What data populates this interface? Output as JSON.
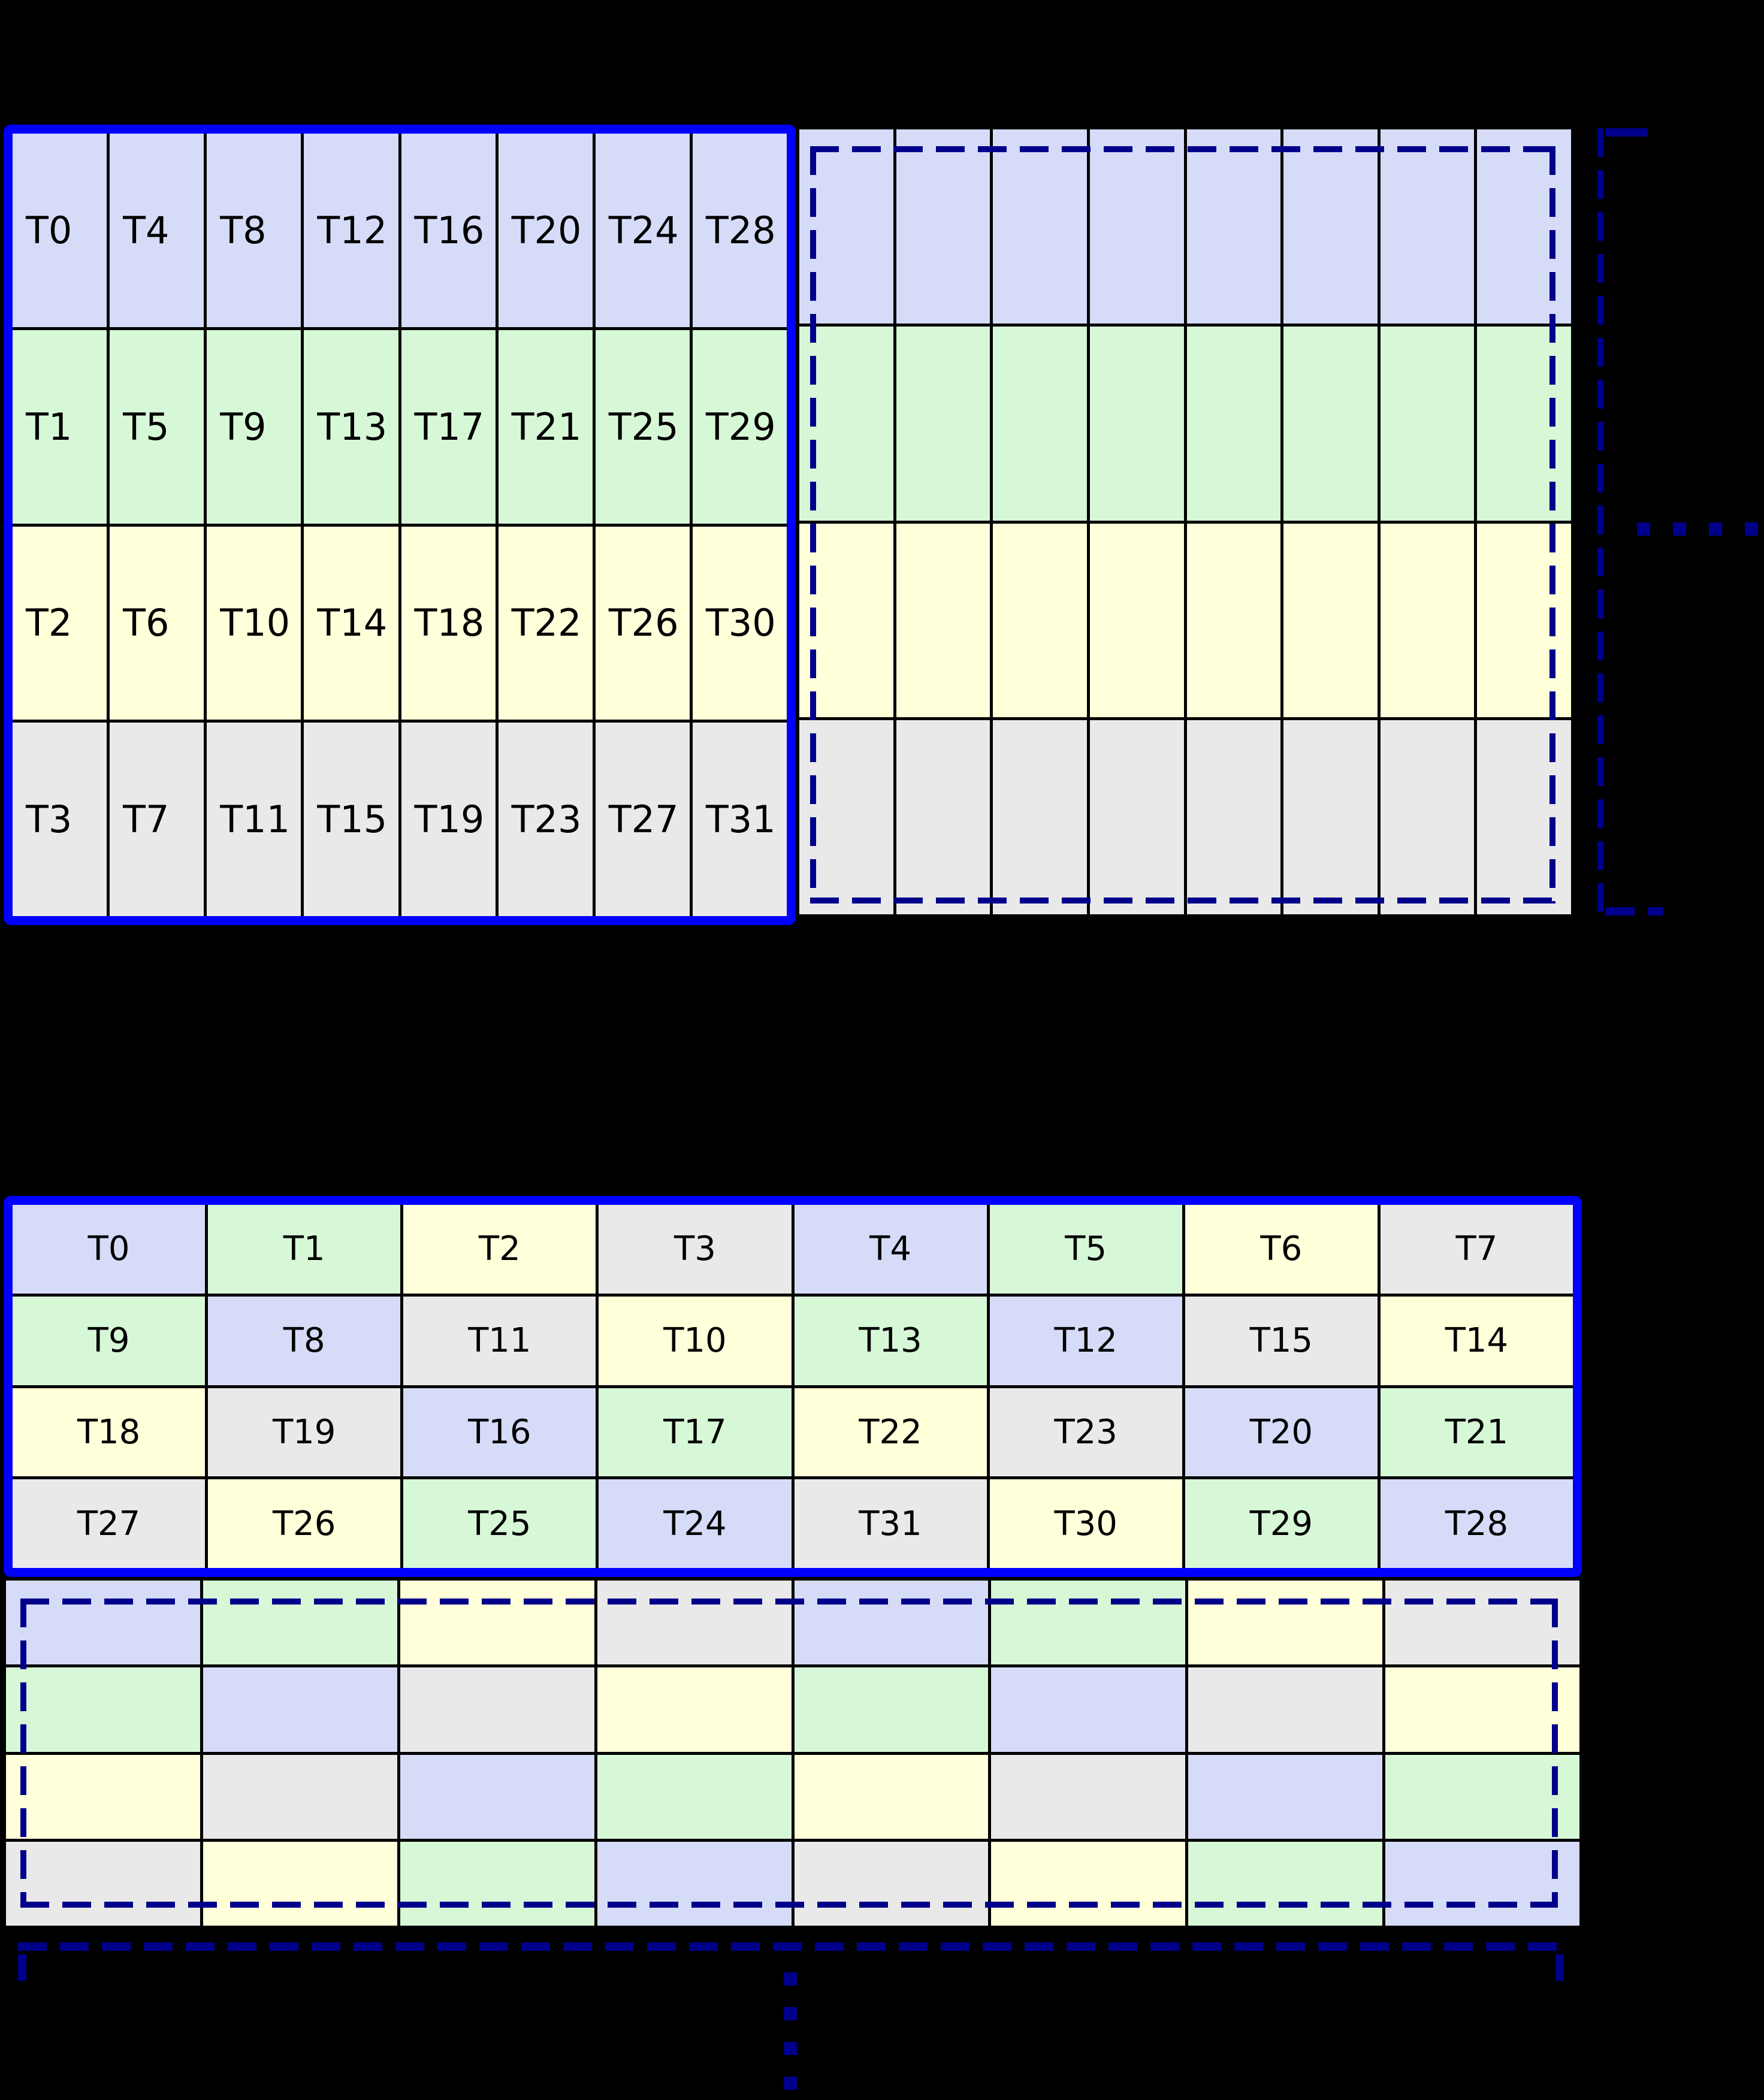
{
  "palette": {
    "lane0_blue": "#d6dcf8",
    "lane1_green": "#d7f8d7",
    "lane2_yellow": "#ffffd9",
    "lane3_gray": "#e9e9e9",
    "warp_outline_blue": "#0000fc",
    "dashed_outline_navy": "#00008b",
    "grid_line": "#000000",
    "background": "#000000"
  },
  "top_figure": {
    "warp_grid": {
      "cols": 8,
      "rows": [
        [
          {
            "t": "T0",
            "c": 0
          },
          {
            "t": "T4",
            "c": 0
          },
          {
            "t": "T8",
            "c": 0
          },
          {
            "t": "T12",
            "c": 0
          },
          {
            "t": "T16",
            "c": 0
          },
          {
            "t": "T20",
            "c": 0
          },
          {
            "t": "T24",
            "c": 0
          },
          {
            "t": "T28",
            "c": 0
          }
        ],
        [
          {
            "t": "T1",
            "c": 1
          },
          {
            "t": "T5",
            "c": 1
          },
          {
            "t": "T9",
            "c": 1
          },
          {
            "t": "T13",
            "c": 1
          },
          {
            "t": "T17",
            "c": 1
          },
          {
            "t": "T21",
            "c": 1
          },
          {
            "t": "T25",
            "c": 1
          },
          {
            "t": "T29",
            "c": 1
          }
        ],
        [
          {
            "t": "T2",
            "c": 2
          },
          {
            "t": "T6",
            "c": 2
          },
          {
            "t": "T10",
            "c": 2
          },
          {
            "t": "T14",
            "c": 2
          },
          {
            "t": "T18",
            "c": 2
          },
          {
            "t": "T22",
            "c": 2
          },
          {
            "t": "T26",
            "c": 2
          },
          {
            "t": "T30",
            "c": 2
          }
        ],
        [
          {
            "t": "T3",
            "c": 3
          },
          {
            "t": "T7",
            "c": 3
          },
          {
            "t": "T11",
            "c": 3
          },
          {
            "t": "T15",
            "c": 3
          },
          {
            "t": "T19",
            "c": 3
          },
          {
            "t": "T23",
            "c": 3
          },
          {
            "t": "T27",
            "c": 3
          },
          {
            "t": "T31",
            "c": 3
          }
        ]
      ]
    },
    "next_warp_grid": {
      "cols": 8,
      "rows": [
        [
          {
            "c": 0
          },
          {
            "c": 0
          },
          {
            "c": 0
          },
          {
            "c": 0
          },
          {
            "c": 0
          },
          {
            "c": 0
          },
          {
            "c": 0
          },
          {
            "c": 0
          }
        ],
        [
          {
            "c": 1
          },
          {
            "c": 1
          },
          {
            "c": 1
          },
          {
            "c": 1
          },
          {
            "c": 1
          },
          {
            "c": 1
          },
          {
            "c": 1
          },
          {
            "c": 1
          }
        ],
        [
          {
            "c": 2
          },
          {
            "c": 2
          },
          {
            "c": 2
          },
          {
            "c": 2
          },
          {
            "c": 2
          },
          {
            "c": 2
          },
          {
            "c": 2
          },
          {
            "c": 2
          }
        ],
        [
          {
            "c": 3
          },
          {
            "c": 3
          },
          {
            "c": 3
          },
          {
            "c": 3
          },
          {
            "c": 3
          },
          {
            "c": 3
          },
          {
            "c": 3
          },
          {
            "c": 3
          }
        ]
      ]
    },
    "right_ellipsis_dots": 4
  },
  "bottom_figure": {
    "warp_grid": {
      "cols": 8,
      "rows": [
        [
          {
            "t": "T0",
            "c": 0
          },
          {
            "t": "T1",
            "c": 1
          },
          {
            "t": "T2",
            "c": 2
          },
          {
            "t": "T3",
            "c": 3
          },
          {
            "t": "T4",
            "c": 0
          },
          {
            "t": "T5",
            "c": 1
          },
          {
            "t": "T6",
            "c": 2
          },
          {
            "t": "T7",
            "c": 3
          }
        ],
        [
          {
            "t": "T9",
            "c": 1
          },
          {
            "t": "T8",
            "c": 0
          },
          {
            "t": "T11",
            "c": 3
          },
          {
            "t": "T10",
            "c": 2
          },
          {
            "t": "T13",
            "c": 1
          },
          {
            "t": "T12",
            "c": 0
          },
          {
            "t": "T15",
            "c": 3
          },
          {
            "t": "T14",
            "c": 2
          }
        ],
        [
          {
            "t": "T18",
            "c": 2
          },
          {
            "t": "T19",
            "c": 3
          },
          {
            "t": "T16",
            "c": 0
          },
          {
            "t": "T17",
            "c": 1
          },
          {
            "t": "T22",
            "c": 2
          },
          {
            "t": "T23",
            "c": 3
          },
          {
            "t": "T20",
            "c": 0
          },
          {
            "t": "T21",
            "c": 1
          }
        ],
        [
          {
            "t": "T27",
            "c": 3
          },
          {
            "t": "T26",
            "c": 2
          },
          {
            "t": "T25",
            "c": 1
          },
          {
            "t": "T24",
            "c": 0
          },
          {
            "t": "T31",
            "c": 3
          },
          {
            "t": "T30",
            "c": 2
          },
          {
            "t": "T29",
            "c": 1
          },
          {
            "t": "T28",
            "c": 0
          }
        ]
      ]
    },
    "next_warp_grid": {
      "cols": 8,
      "rows": [
        [
          {
            "c": 0
          },
          {
            "c": 1
          },
          {
            "c": 2
          },
          {
            "c": 3
          },
          {
            "c": 0
          },
          {
            "c": 1
          },
          {
            "c": 2
          },
          {
            "c": 3
          }
        ],
        [
          {
            "c": 1
          },
          {
            "c": 0
          },
          {
            "c": 3
          },
          {
            "c": 2
          },
          {
            "c": 1
          },
          {
            "c": 0
          },
          {
            "c": 3
          },
          {
            "c": 2
          }
        ],
        [
          {
            "c": 2
          },
          {
            "c": 3
          },
          {
            "c": 0
          },
          {
            "c": 1
          },
          {
            "c": 2
          },
          {
            "c": 3
          },
          {
            "c": 0
          },
          {
            "c": 1
          }
        ],
        [
          {
            "c": 3
          },
          {
            "c": 2
          },
          {
            "c": 1
          },
          {
            "c": 0
          },
          {
            "c": 3
          },
          {
            "c": 2
          },
          {
            "c": 1
          },
          {
            "c": 0
          }
        ]
      ]
    },
    "bottom_ellipsis_dots": 4
  }
}
